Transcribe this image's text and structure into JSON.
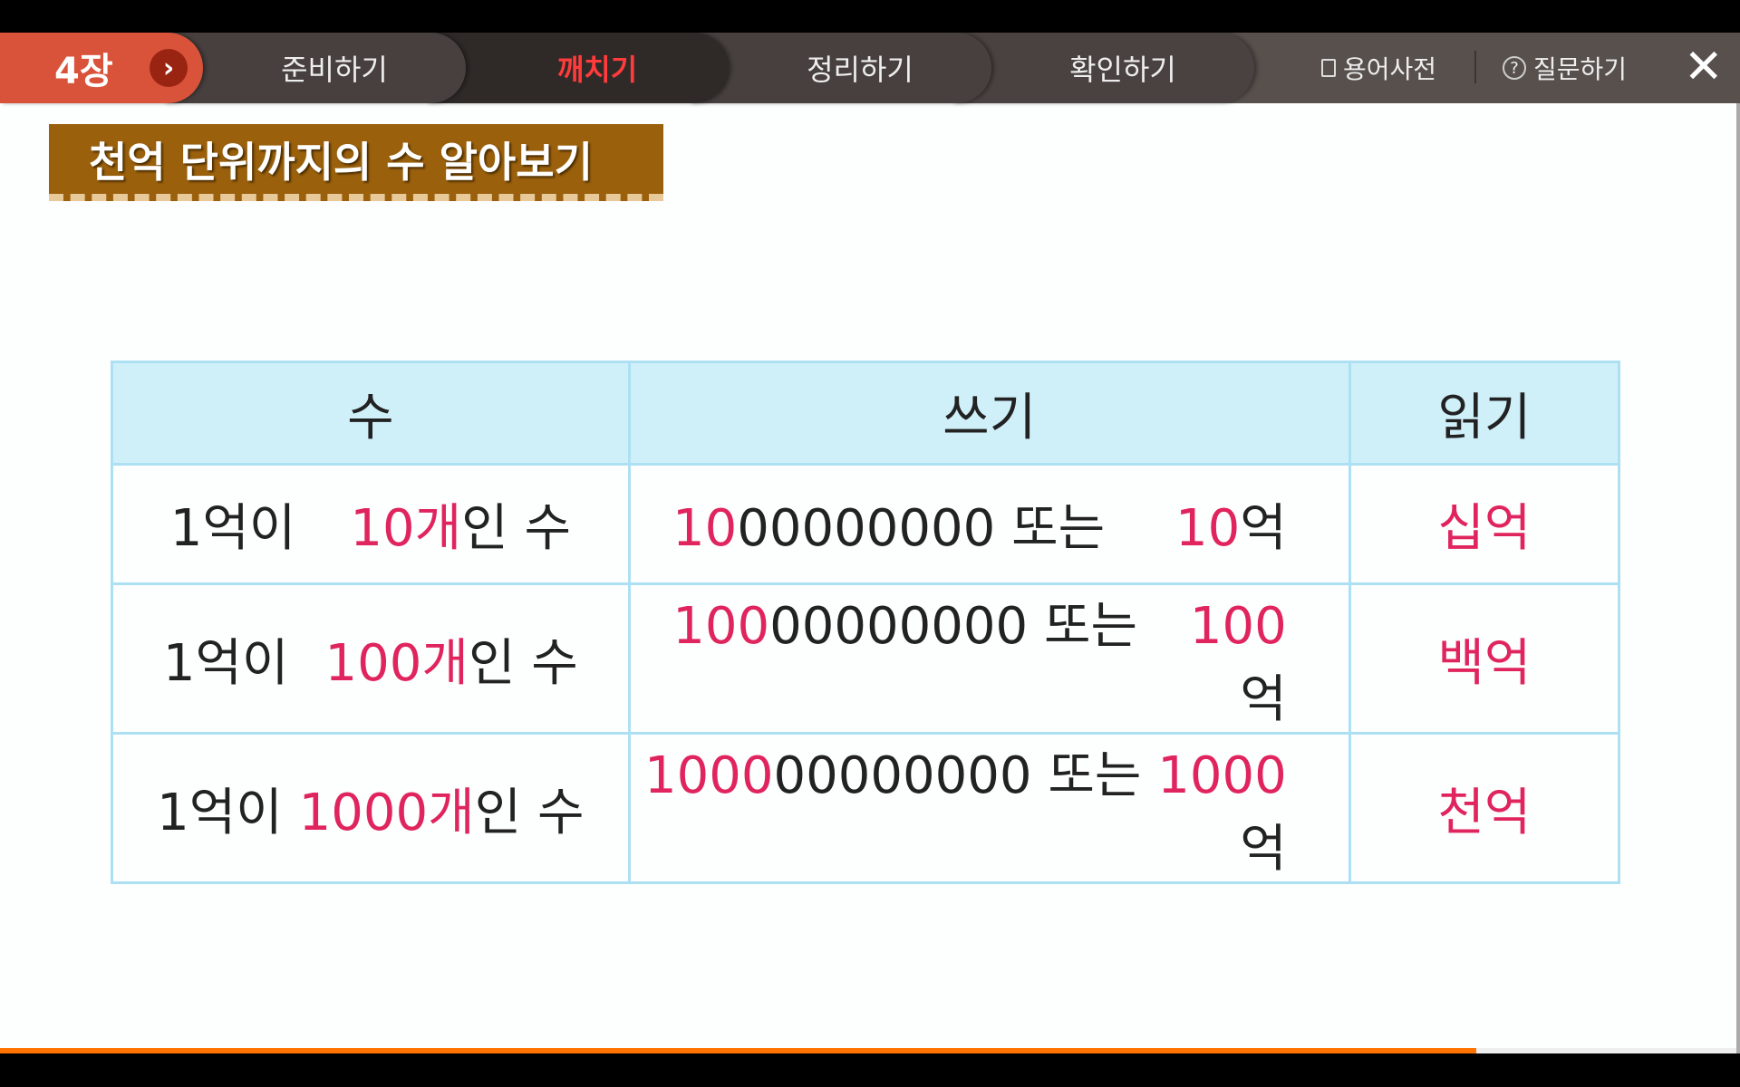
{
  "nav": {
    "chapter": "4장",
    "tabs": [
      {
        "label": "준비하기",
        "active": false
      },
      {
        "label": "깨치기",
        "active": true
      },
      {
        "label": "정리하기",
        "active": false
      },
      {
        "label": "확인하기",
        "active": false
      }
    ],
    "glossary": "용어사전",
    "question": "질문하기",
    "close_icon": "close-icon"
  },
  "page": {
    "title": "천억 단위까지의 수 알아보기",
    "progress_percent": 85
  },
  "table": {
    "headers": [
      "수",
      "쓰기",
      "읽기"
    ],
    "rows": [
      {
        "number": {
          "prefix": "1억이",
          "count": "10개",
          "suffix": "인 수"
        },
        "writing": {
          "red": "10",
          "black": "00000000",
          "sep": "또는",
          "red2": "10",
          "unit": "억"
        },
        "reading": "십억"
      },
      {
        "number": {
          "prefix": "1억이",
          "count": "100개",
          "suffix": "인 수"
        },
        "writing": {
          "red": "100",
          "black": "00000000",
          "sep": "또는",
          "red2": "100",
          "unit": "억"
        },
        "reading": "백억"
      },
      {
        "number": {
          "prefix": "1억이",
          "count": "1000개",
          "suffix": "인 수"
        },
        "writing": {
          "red": "1000",
          "black": "00000000",
          "sep": "또는",
          "red2": "1000",
          "unit": "억"
        },
        "reading": "천억"
      }
    ]
  },
  "colors": {
    "accent": "#d9533a",
    "active_tab": "#ff3b3b",
    "highlight": "#e0245e",
    "header_bg": "#cff0f9",
    "progress": "#ff7300"
  }
}
